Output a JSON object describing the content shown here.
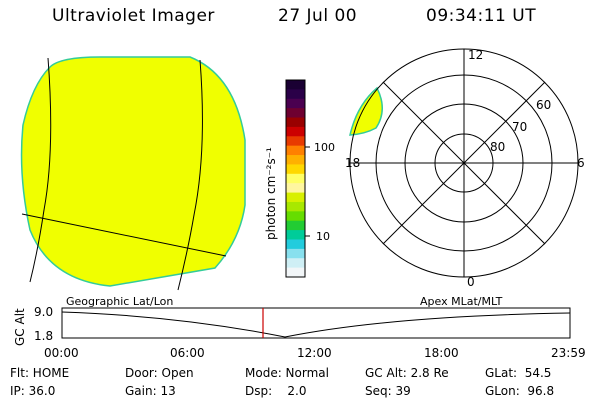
{
  "header": {
    "title": "Ultraviolet Imager",
    "date": "27 Jul 00",
    "time": "09:34:11 UT"
  },
  "colorbar": {
    "unit_label": "photon cm⁻²s⁻¹",
    "tick_100": "100",
    "tick_10": "10",
    "colors_top_to_bottom": [
      "#1a0033",
      "#2a0048",
      "#4a0050",
      "#6e0030",
      "#990000",
      "#cc0000",
      "#e83a00",
      "#ff8000",
      "#ffb000",
      "#ffd800",
      "#ffff66",
      "#fff6a0",
      "#d8f000",
      "#a8e800",
      "#66dd00",
      "#22cc33",
      "#00cc99",
      "#22ccdd",
      "#88e0ee",
      "#cfeff5",
      "#f2f6f8"
    ]
  },
  "earth_image": {
    "fill_color": "#f0ff00",
    "limb_color": "#33cc99",
    "grid_color": "#000000"
  },
  "polar_plot": {
    "mlt_labels": {
      "top": "12",
      "left": "18",
      "right": "6",
      "bottom": "0"
    },
    "lat_labels": [
      "60",
      "70",
      "80"
    ],
    "aurora_fill": "#f0ff00"
  },
  "timeline": {
    "left_caption": "Geographic Lat/Lon",
    "right_caption": "Apex MLat/MLT",
    "axis_title": "GC Alt",
    "y_top_label": "9.0",
    "y_bottom_label": "1.8",
    "time_labels": [
      "00:00",
      "06:00",
      "12:00",
      "18:00",
      "23:59"
    ],
    "current_time_marker_color": "#cc0000"
  },
  "info": {
    "col1": [
      "Flt: HOME",
      "IP: 36.0"
    ],
    "col2": [
      "Door: Open",
      "Gain: 13"
    ],
    "col3": [
      "Mode: Normal",
      "Dsp:    2.0"
    ],
    "col4": [
      "GC Alt: 2.8 Re",
      "Seq: 39"
    ],
    "col5": [
      "GLat:  54.5",
      "GLon:  96.8"
    ]
  }
}
